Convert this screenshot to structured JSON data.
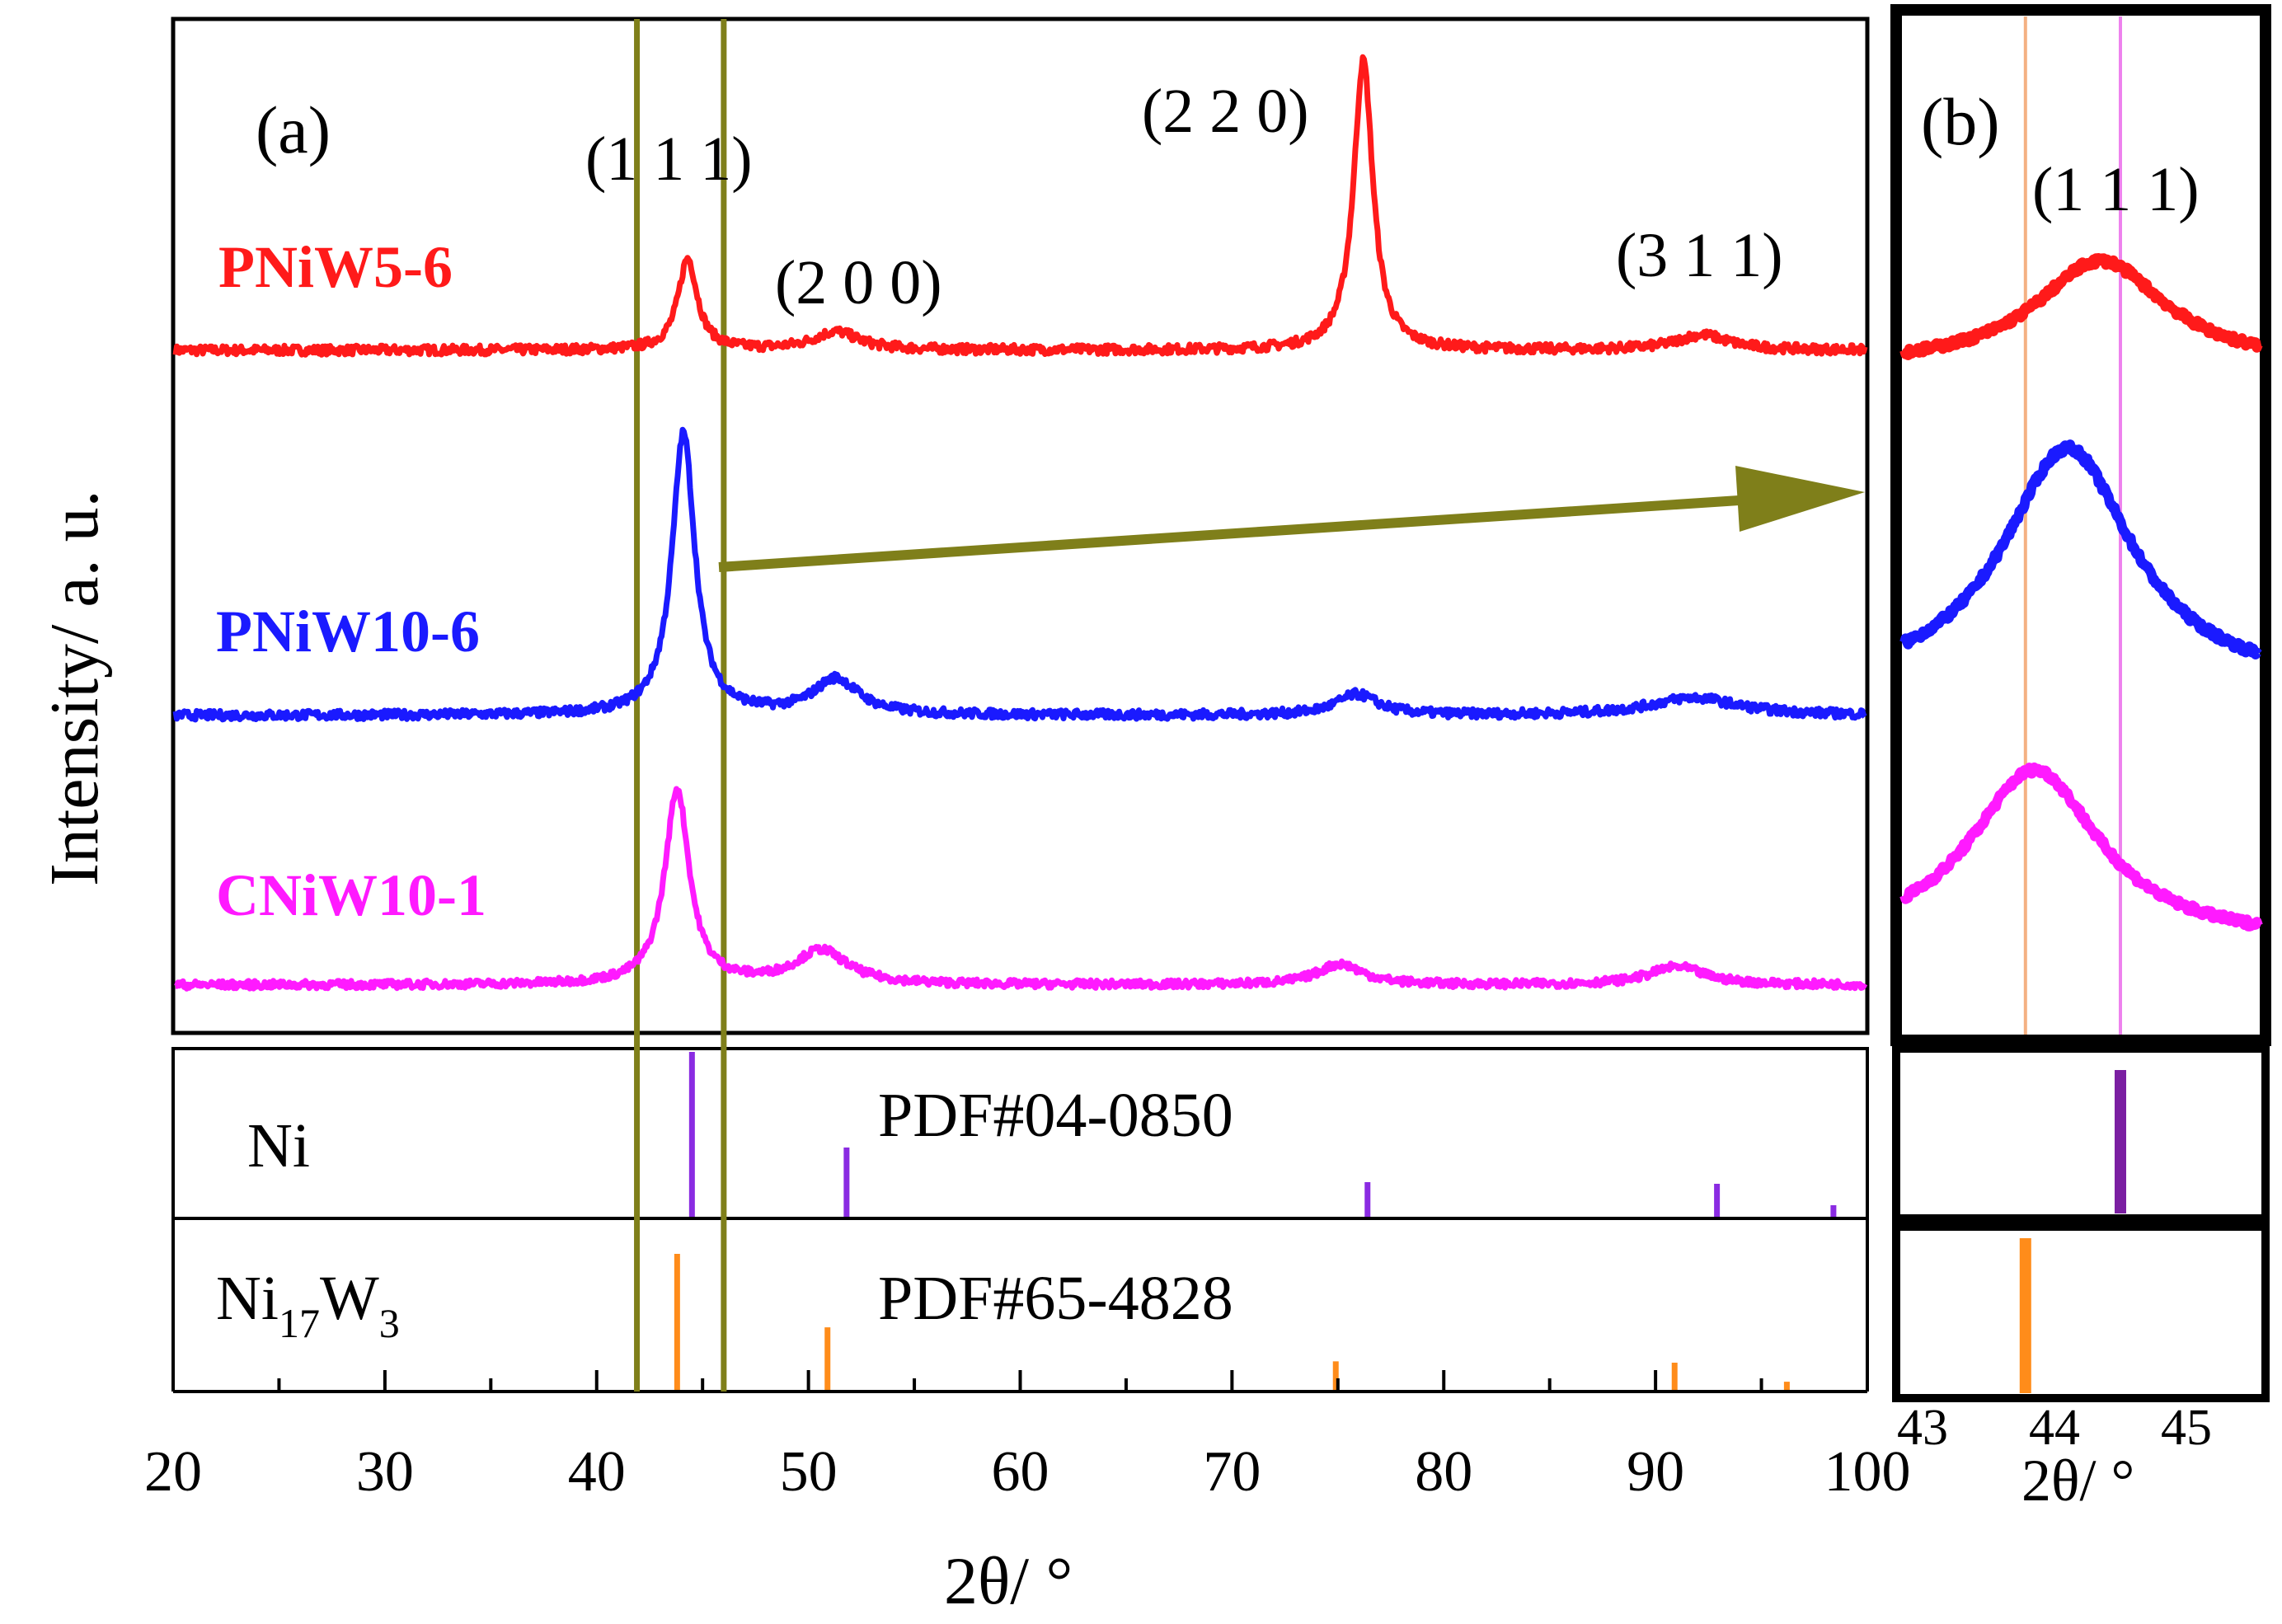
{
  "chart_data": [
    {
      "panel": "a",
      "type": "line",
      "panel_label": "(a)",
      "ylabel": "Intensity/ a. u.",
      "xlabel": "2θ/ °",
      "xlim": [
        20,
        100
      ],
      "xticks": [
        "20",
        "30",
        "40",
        "50",
        "60",
        "70",
        "80",
        "90",
        "100"
      ],
      "guide_lines_x": [
        41.9,
        46.0
      ],
      "series": [
        {
          "name": "PNiW5-6",
          "color": "#ff1a1a",
          "base": 0.0,
          "peaks": [
            {
              "x": 44.3,
              "h": 0.3,
              "w": 0.55
            },
            {
              "x": 51.3,
              "h": 0.06,
              "w": 1.3
            },
            {
              "x": 76.2,
              "h": 0.95,
              "w": 0.55
            },
            {
              "x": 92.2,
              "h": 0.05,
              "w": 1.5
            }
          ]
        },
        {
          "name": "PNiW10-6",
          "color": "#1a1aff",
          "base": 0.0,
          "peaks": [
            {
              "x": 44.1,
              "h": 0.95,
              "w": 0.65
            },
            {
              "x": 51.3,
              "h": 0.12,
              "w": 1.3
            },
            {
              "x": 75.9,
              "h": 0.07,
              "w": 1.2
            },
            {
              "x": 91.8,
              "h": 0.06,
              "w": 2.5
            }
          ]
        },
        {
          "name": "CNiW10-1",
          "color": "#ff1aff",
          "base": 0.0,
          "peaks": [
            {
              "x": 43.8,
              "h": 0.75,
              "w": 0.7
            },
            {
              "x": 50.6,
              "h": 0.13,
              "w": 1.5
            },
            {
              "x": 75.1,
              "h": 0.08,
              "w": 1.3
            },
            {
              "x": 91.0,
              "h": 0.07,
              "w": 1.6
            }
          ]
        }
      ],
      "annotations": [
        "(1 1 1)",
        "(2 0 0)",
        "(2 2 0)",
        "(3 1 1)"
      ]
    },
    {
      "panel": "ref",
      "type": "bar",
      "references": [
        {
          "phase": "Ni",
          "pdf": "PDF#04-0850",
          "color": "#8a2be2",
          "lines": [
            {
              "x": 44.5,
              "i": 100
            },
            {
              "x": 51.8,
              "i": 42
            },
            {
              "x": 76.4,
              "i": 21
            },
            {
              "x": 92.9,
              "i": 20
            },
            {
              "x": 98.4,
              "i": 7
            }
          ]
        },
        {
          "phase": "Ni17W3",
          "pdf": "PDF#65-4828",
          "color": "#ff8c1a",
          "lines": [
            {
              "x": 43.8,
              "i": 100
            },
            {
              "x": 50.9,
              "i": 46
            },
            {
              "x": 74.9,
              "i": 21
            },
            {
              "x": 90.9,
              "i": 20
            },
            {
              "x": 96.2,
              "i": 6
            }
          ]
        }
      ]
    },
    {
      "panel": "b",
      "type": "line",
      "panel_label": "(b)",
      "annotation": "(1 1 1)",
      "xlabel": "2θ/ °",
      "xlim": [
        42.8,
        45.6
      ],
      "xticks": [
        "43",
        "44",
        "45"
      ],
      "ref_lines": [
        {
          "x": 43.78,
          "color": "#f4b183"
        },
        {
          "x": 44.5,
          "color": "#ee82ee"
        }
      ],
      "series": [
        {
          "name": "PNiW5-6",
          "color": "#ff1a1a",
          "center": 44.35,
          "h": 0.28
        },
        {
          "name": "PNiW10-6",
          "color": "#1a1aff",
          "center": 44.1,
          "h": 0.62
        },
        {
          "name": "CNiW10-1",
          "color": "#ff1aff",
          "center": 43.85,
          "h": 0.48
        }
      ],
      "ref_bars": [
        {
          "x": 44.5,
          "color": "#7b1fa2"
        },
        {
          "x": 43.78,
          "color": "#ff8c1a"
        }
      ]
    }
  ],
  "labels": {
    "a_panel": "(a)",
    "b_panel": "(b)",
    "ylabel": "Intensity/ a. u.",
    "xlabel_a": "2θ/ °",
    "xlabel_b": "2θ/ °",
    "peak_111": "(1 1 1)",
    "peak_200": "(2 0 0)",
    "peak_220": "(2 2 0)",
    "peak_311": "(3 1 1)",
    "peak_111_b": "(1 1 1)",
    "s1": "PNiW5-6",
    "s2": "PNiW10-6",
    "s3": "CNiW10-1",
    "ref1_phase": "Ni",
    "ref1_pdf": "PDF#04-0850",
    "ref2_phase_base": "Ni",
    "ref2_sub1": "17",
    "ref2_phase_w": "W",
    "ref2_sub2": "3",
    "ref2_pdf": "PDF#65-4828"
  },
  "colors": {
    "guide": "#7f7f1a",
    "arrow": "#7f7f1a",
    "axis": "#000000"
  }
}
